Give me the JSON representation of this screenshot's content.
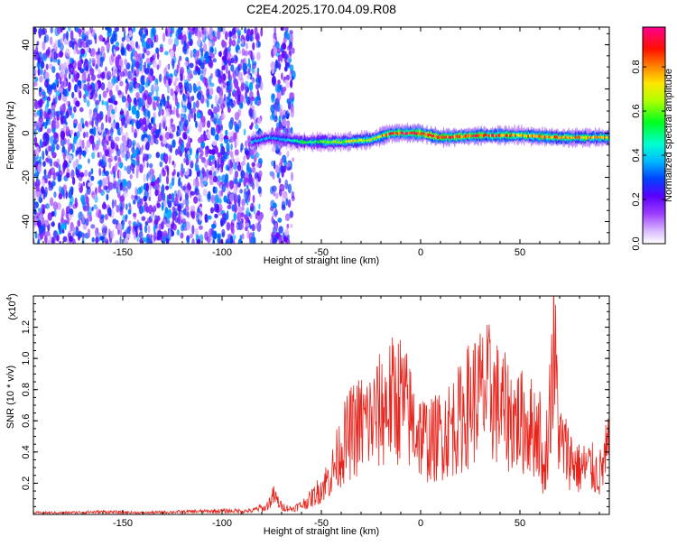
{
  "title": "C2E4.2025.170.04.09.R08",
  "colors": {
    "snr_line": "#e8241c",
    "frame": "#000000",
    "background": "#ffffff"
  },
  "chart_data": [
    {
      "type": "heatmap",
      "xlabel": "Height of straight line (km)",
      "ylabel": "Frequency (Hz)",
      "xlim": [
        -195,
        95
      ],
      "ylim": [
        -50,
        48
      ],
      "x_ticks": [
        "-150",
        "-100",
        "-50",
        "0",
        "50"
      ],
      "y_ticks": [
        "40",
        "20",
        "0",
        "-20",
        "-40"
      ],
      "grid": false,
      "colorbar": {
        "label": "Normalized spectral amplitude",
        "range": [
          0,
          1
        ],
        "ticks": [
          "0.0",
          "0.2",
          "0.4",
          "0.6",
          "0.8"
        ],
        "colormap": "rainbow (white→purple→blue→cyan→green→yellow→red→magenta)"
      },
      "regions": [
        {
          "x_range": [
            -195,
            -80
          ],
          "description_level": 0.15,
          "freq_range": [
            -50,
            48
          ]
        },
        {
          "x_range": [
            -75,
            -64
          ],
          "description_level": 0.15,
          "freq_range": [
            -50,
            48
          ]
        }
      ],
      "ridge": [
        {
          "x": -85,
          "freq": -4,
          "amplitude": 0.4
        },
        {
          "x": -75,
          "freq": -2,
          "amplitude": 0.35
        },
        {
          "x": -60,
          "freq": -4,
          "amplitude": 0.5
        },
        {
          "x": -40,
          "freq": -4,
          "amplitude": 0.65
        },
        {
          "x": -25,
          "freq": -3,
          "amplitude": 0.7
        },
        {
          "x": -15,
          "freq": 0,
          "amplitude": 0.85
        },
        {
          "x": 0,
          "freq": 0,
          "amplitude": 0.95
        },
        {
          "x": 10,
          "freq": -2,
          "amplitude": 0.9
        },
        {
          "x": 30,
          "freq": -1,
          "amplitude": 0.85
        },
        {
          "x": 50,
          "freq": -1,
          "amplitude": 0.8
        },
        {
          "x": 70,
          "freq": -2,
          "amplitude": 0.8
        },
        {
          "x": 95,
          "freq": -2,
          "amplitude": 0.75
        }
      ]
    },
    {
      "type": "line",
      "xlabel": "Height of straight line (km)",
      "ylabel": "SNR (10 * v/v)",
      "y_multiplier": "(x10",
      "y_multiplier_exp": "4",
      "y_multiplier_close": ")",
      "xlim": [
        -195,
        95
      ],
      "ylim": [
        0,
        1.4
      ],
      "x_ticks": [
        "-150",
        "-100",
        "-50",
        "0",
        "50"
      ],
      "y_ticks": [
        "0.2",
        "0.4",
        "0.6",
        "0.8",
        "1.0",
        "1.2"
      ],
      "grid": false,
      "series": [
        {
          "x": [
            -195,
            -180,
            -160,
            -140,
            -120,
            -100,
            -85,
            -78,
            -74,
            -70,
            -65,
            -60,
            -55,
            -50,
            -45,
            -40,
            -35,
            -30,
            -25,
            -20,
            -15,
            -10,
            -5,
            0,
            5,
            10,
            15,
            20,
            25,
            30,
            35,
            40,
            45,
            50,
            55,
            60,
            62,
            65,
            67,
            70,
            75,
            80,
            85,
            90,
            95
          ],
          "y": [
            0.01,
            0.01,
            0.015,
            0.01,
            0.015,
            0.02,
            0.02,
            0.05,
            0.14,
            0.06,
            0.04,
            0.07,
            0.12,
            0.2,
            0.3,
            0.5,
            0.62,
            0.68,
            0.7,
            0.78,
            0.85,
            0.88,
            0.72,
            0.6,
            0.55,
            0.6,
            0.66,
            0.72,
            0.85,
            0.9,
            0.92,
            0.8,
            0.74,
            0.7,
            0.67,
            0.62,
            0.25,
            0.8,
            1.3,
            0.55,
            0.44,
            0.34,
            0.36,
            0.3,
            0.5
          ]
        }
      ]
    }
  ]
}
